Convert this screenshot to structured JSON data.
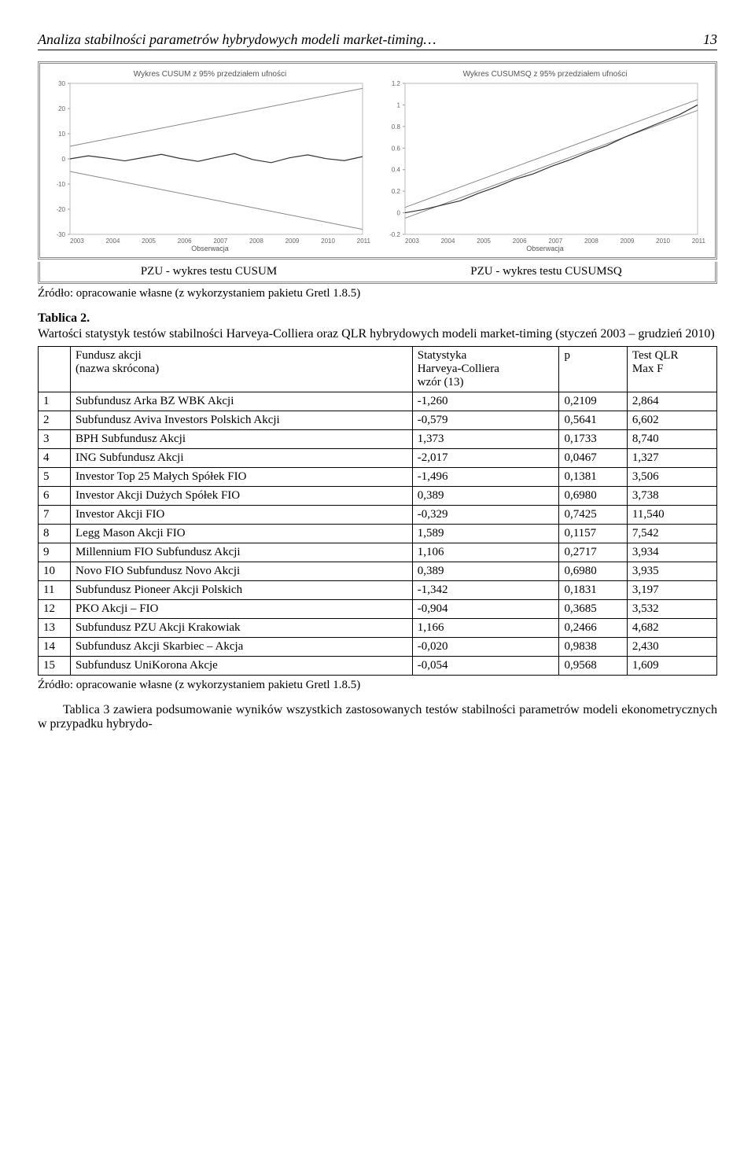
{
  "header": {
    "title": "Analiza stabilności parametrów hybrydowych modeli market-timing…",
    "page": "13"
  },
  "charts": {
    "left": {
      "title": "Wykres CUSUM z 95% przedziałem ufności",
      "caption": "PZU - wykres testu CUSUM",
      "ylim": [
        -30,
        30
      ],
      "yticks": [
        -30,
        -20,
        -10,
        0,
        10,
        20,
        30
      ],
      "xlim": [
        2003,
        2011
      ],
      "xticks": [
        2003,
        2004,
        2005,
        2006,
        2007,
        2008,
        2009,
        2010,
        2011
      ],
      "xlabel": "Obserwacja",
      "band_top": [
        [
          2003,
          5
        ],
        [
          2011,
          28
        ]
      ],
      "band_bot": [
        [
          2003,
          -5
        ],
        [
          2011,
          -28
        ]
      ],
      "series": [
        [
          2003,
          0
        ],
        [
          2003.5,
          1.2
        ],
        [
          2004,
          0.3
        ],
        [
          2004.5,
          -0.8
        ],
        [
          2005,
          0.5
        ],
        [
          2005.5,
          1.8
        ],
        [
          2006,
          0.2
        ],
        [
          2006.5,
          -1.0
        ],
        [
          2007,
          0.6
        ],
        [
          2007.5,
          2.1
        ],
        [
          2008,
          -0.3
        ],
        [
          2008.5,
          -1.5
        ],
        [
          2009,
          0.4
        ],
        [
          2009.5,
          1.6
        ],
        [
          2010,
          0.1
        ],
        [
          2010.5,
          -0.7
        ],
        [
          2011,
          0.9
        ]
      ],
      "line_color": "#888888",
      "series_color": "#333333",
      "background": "#ffffff"
    },
    "right": {
      "title": "Wykres CUSUMSQ z 95% przedziałem ufności",
      "caption": "PZU - wykres testu CUSUMSQ",
      "ylim": [
        -0.2,
        1.2
      ],
      "yticks": [
        -0.2,
        0,
        0.2,
        0.4,
        0.6,
        0.8,
        1,
        1.2
      ],
      "xlim": [
        2003,
        2011
      ],
      "xticks": [
        2003,
        2004,
        2005,
        2006,
        2007,
        2008,
        2009,
        2010,
        2011
      ],
      "xlabel": "Obserwacja",
      "band_top": [
        [
          2003,
          0.05
        ],
        [
          2011,
          1.05
        ]
      ],
      "band_bot": [
        [
          2003,
          -0.05
        ],
        [
          2011,
          0.95
        ]
      ],
      "series": [
        [
          2003,
          0
        ],
        [
          2003.5,
          0.03
        ],
        [
          2004,
          0.07
        ],
        [
          2004.5,
          0.11
        ],
        [
          2005,
          0.18
        ],
        [
          2005.5,
          0.24
        ],
        [
          2006,
          0.31
        ],
        [
          2006.5,
          0.36
        ],
        [
          2007,
          0.43
        ],
        [
          2007.5,
          0.49
        ],
        [
          2008,
          0.56
        ],
        [
          2008.5,
          0.62
        ],
        [
          2009,
          0.7
        ],
        [
          2009.5,
          0.77
        ],
        [
          2010,
          0.84
        ],
        [
          2010.5,
          0.91
        ],
        [
          2011,
          1.0
        ]
      ],
      "line_color": "#888888",
      "series_color": "#333333",
      "background": "#ffffff"
    }
  },
  "source_line": "Źródło: opracowanie własne (z wykorzystaniem pakietu Gretl 1.8.5)",
  "tablica": {
    "header": "Tablica 2.",
    "desc": "Wartości statystyk testów stabilności Harveya-Colliera oraz QLR hybrydowych modeli market-timing (styczeń 2003 – grudzień 2010)",
    "columns": [
      "",
      "Fundusz akcji\n(nazwa skrócona)",
      "Statystyka\nHarveya-Colliera\nwzór (13)",
      "p",
      "Test QLR\nMax F"
    ],
    "rows": [
      [
        "1",
        "Subfundusz Arka BZ WBK Akcji",
        "-1,260",
        "0,2109",
        "2,864"
      ],
      [
        "2",
        "Subfundusz Aviva Investors Polskich Akcji",
        "-0,579",
        "0,5641",
        "6,602"
      ],
      [
        "3",
        "BPH Subfundusz Akcji",
        "1,373",
        "0,1733",
        "8,740"
      ],
      [
        "4",
        "ING Subfundusz Akcji",
        "-2,017",
        "0,0467",
        "1,327"
      ],
      [
        "5",
        "Investor Top 25 Małych Spółek FIO",
        "-1,496",
        "0,1381",
        "3,506"
      ],
      [
        "6",
        "Investor Akcji Dużych Spółek FIO",
        "0,389",
        "0,6980",
        "3,738"
      ],
      [
        "7",
        "Investor Akcji FIO",
        "-0,329",
        "0,7425",
        "11,540"
      ],
      [
        "8",
        "Legg Mason Akcji FIO",
        "1,589",
        "0,1157",
        "7,542"
      ],
      [
        "9",
        "Millennium FIO Subfundusz Akcji",
        "1,106",
        "0,2717",
        "3,934"
      ],
      [
        "10",
        "Novo FIO Subfundusz Novo Akcji",
        "0,389",
        "0,6980",
        "3,935"
      ],
      [
        "11",
        "Subfundusz Pioneer Akcji Polskich",
        "-1,342",
        "0,1831",
        "3,197"
      ],
      [
        "12",
        "PKO Akcji – FIO",
        "-0,904",
        "0,3685",
        "3,532"
      ],
      [
        "13",
        "Subfundusz PZU Akcji Krakowiak",
        "1,166",
        "0,2466",
        "4,682"
      ],
      [
        "14",
        "Subfundusz Akcji Skarbiec – Akcja",
        "-0,020",
        "0,9838",
        "2,430"
      ],
      [
        "15",
        "Subfundusz UniKorona Akcje",
        "-0,054",
        "0,9568",
        "1,609"
      ]
    ]
  },
  "footer_para": "Tablica 3 zawiera podsumowanie wyników wszystkich zastosowanych testów stabilności parametrów modeli ekonometrycznych w przypadku hybrydo-"
}
